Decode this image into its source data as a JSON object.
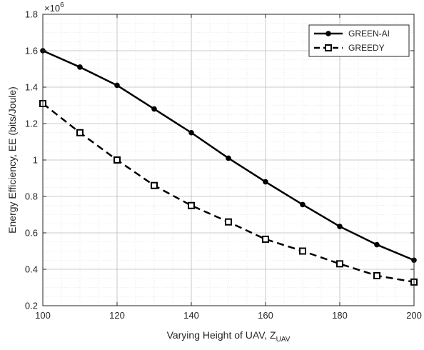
{
  "chart_data": {
    "type": "line",
    "xlabel": "Varying Height of UAV, Z",
    "xlabel_sub": "UAV",
    "ylabel": "Energy Efficiency, EE (bits/Joule)",
    "y_multiplier_base": "×10",
    "y_multiplier_exp": "6",
    "xlim": [
      100,
      200
    ],
    "ylim": [
      0.2,
      1.8
    ],
    "xticks": [
      100,
      120,
      140,
      160,
      180,
      200
    ],
    "yticks": [
      0.2,
      0.4,
      0.6,
      0.8,
      1,
      1.2,
      1.4,
      1.6,
      1.8
    ],
    "grid": true,
    "minor_grid": true,
    "legend_position": "top-right",
    "x": [
      100,
      110,
      120,
      130,
      140,
      150,
      160,
      170,
      180,
      190,
      200
    ],
    "series": [
      {
        "name": "GREEN-AI",
        "style": "solid",
        "marker": "filled-circle",
        "color": "#000000",
        "values": [
          1.6,
          1.51,
          1.41,
          1.28,
          1.15,
          1.01,
          0.88,
          0.755,
          0.635,
          0.535,
          0.45
        ]
      },
      {
        "name": "GREEDY",
        "style": "dashed",
        "marker": "open-square",
        "color": "#000000",
        "values": [
          1.31,
          1.15,
          1.0,
          0.86,
          0.75,
          0.66,
          0.565,
          0.5,
          0.43,
          0.365,
          0.33
        ]
      }
    ]
  }
}
